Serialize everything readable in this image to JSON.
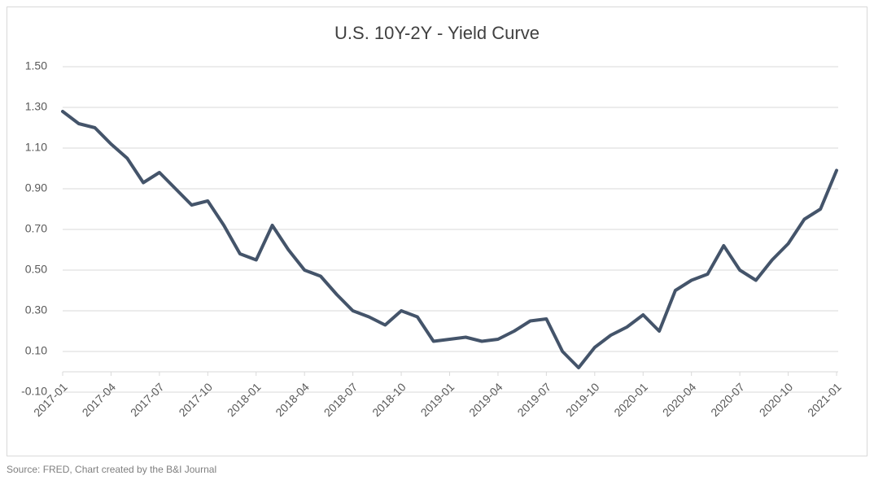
{
  "chart_data": {
    "type": "line",
    "title": "U.S. 10Y-2Y - Yield Curve",
    "source": "Source: FRED, Chart created by the B&I Journal",
    "x": [
      "2017-01",
      "2017-02",
      "2017-03",
      "2017-04",
      "2017-05",
      "2017-06",
      "2017-07",
      "2017-08",
      "2017-09",
      "2017-10",
      "2017-11",
      "2017-12",
      "2018-01",
      "2018-02",
      "2018-03",
      "2018-04",
      "2018-05",
      "2018-06",
      "2018-07",
      "2018-08",
      "2018-09",
      "2018-10",
      "2018-11",
      "2018-12",
      "2019-01",
      "2019-02",
      "2019-03",
      "2019-04",
      "2019-05",
      "2019-06",
      "2019-07",
      "2019-08",
      "2019-09",
      "2019-10",
      "2019-11",
      "2019-12",
      "2020-01",
      "2020-02",
      "2020-03",
      "2020-04",
      "2020-05",
      "2020-06",
      "2020-07",
      "2020-08",
      "2020-09",
      "2020-10",
      "2020-11",
      "2020-12",
      "2021-01"
    ],
    "series": [
      {
        "name": "10Y-2Y",
        "color": "#44546a",
        "values": [
          1.28,
          1.22,
          1.2,
          1.12,
          1.05,
          0.93,
          0.98,
          0.9,
          0.82,
          0.84,
          0.72,
          0.58,
          0.55,
          0.72,
          0.6,
          0.5,
          0.47,
          0.38,
          0.3,
          0.27,
          0.23,
          0.3,
          0.27,
          0.15,
          0.16,
          0.17,
          0.15,
          0.16,
          0.2,
          0.25,
          0.26,
          0.1,
          0.02,
          0.12,
          0.18,
          0.22,
          0.28,
          0.2,
          0.4,
          0.45,
          0.48,
          0.62,
          0.5,
          0.45,
          0.55,
          0.63,
          0.75,
          0.8,
          0.99
        ]
      }
    ],
    "xticks": [
      "2017-01",
      "2017-04",
      "2017-07",
      "2017-10",
      "2018-01",
      "2018-04",
      "2018-07",
      "2018-10",
      "2019-01",
      "2019-04",
      "2019-07",
      "2019-10",
      "2020-01",
      "2020-04",
      "2020-07",
      "2020-10",
      "2021-01"
    ],
    "ylim": [
      -0.1,
      1.5
    ],
    "yticks": [
      {
        "value": -0.1,
        "label": "-0.10"
      },
      {
        "value": 0.1,
        "label": "0.10"
      },
      {
        "value": 0.3,
        "label": "0.30"
      },
      {
        "value": 0.5,
        "label": "0.50"
      },
      {
        "value": 0.7,
        "label": "0.70"
      },
      {
        "value": 0.9,
        "label": "0.90"
      },
      {
        "value": 1.1,
        "label": "1.10"
      },
      {
        "value": 1.3,
        "label": "1.30"
      },
      {
        "value": 1.5,
        "label": "1.50"
      }
    ],
    "grid": true
  }
}
